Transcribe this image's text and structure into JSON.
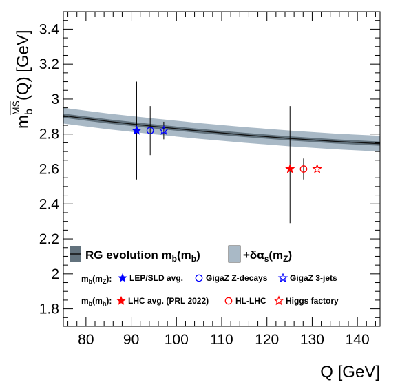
{
  "chart_data": {
    "type": "scatter",
    "xlabel": "Q [GeV]",
    "ylabel": "m_b^{MS}(Q) [GeV]",
    "xlim": [
      75,
      145
    ],
    "ylim": [
      1.7,
      3.5
    ],
    "xticks": [
      80,
      90,
      100,
      110,
      120,
      130,
      140
    ],
    "yticks": [
      1.8,
      2.0,
      2.2,
      2.4,
      2.6,
      2.8,
      3.0,
      3.2,
      3.4
    ],
    "xtick_labels": [
      "80",
      "90",
      "100",
      "110",
      "120",
      "130",
      "140"
    ],
    "ytick_labels": [
      "1.8",
      "2",
      "2.2",
      "2.4",
      "2.6",
      "2.8",
      "3",
      "3.2",
      "3.4"
    ],
    "grid": false,
    "band": {
      "x": [
        75,
        85,
        95,
        105,
        115,
        125,
        135,
        145
      ],
      "center": [
        2.905,
        2.872,
        2.844,
        2.818,
        2.795,
        2.775,
        2.758,
        2.745
      ],
      "inner_halfwidth": 0.012,
      "outer_halfwidth": 0.045
    },
    "points": [
      {
        "x": 91.2,
        "y": 2.82,
        "yerr_low": 0.28,
        "yerr_high": 0.28,
        "marker": "star-filled",
        "color": "#0000ff"
      },
      {
        "x": 94.2,
        "y": 2.82,
        "yerr_low": 0.14,
        "yerr_high": 0.14,
        "marker": "circle-open",
        "color": "#0000ff"
      },
      {
        "x": 97.2,
        "y": 2.82,
        "yerr_low": 0.05,
        "yerr_high": 0.05,
        "marker": "star-open",
        "color": "#0000ff"
      },
      {
        "x": 125.1,
        "y": 2.6,
        "yerr_low": 0.31,
        "yerr_high": 0.36,
        "marker": "star-filled",
        "color": "#ff0000"
      },
      {
        "x": 128.1,
        "y": 2.6,
        "yerr_low": 0.06,
        "yerr_high": 0.06,
        "marker": "circle-open",
        "color": "#ff0000"
      },
      {
        "x": 131.1,
        "y": 2.6,
        "yerr_low": 0,
        "yerr_high": 0,
        "marker": "star-open",
        "color": "#ff0000"
      }
    ],
    "colors": {
      "band_outer": "#a9b9c6",
      "band_inner": "#62727d",
      "central_line": "#111111",
      "blue": "#0000ff",
      "red": "#ff0000"
    }
  },
  "legend": {
    "band_label": "RG evolution m_b(m_b)",
    "band_alpha_label": "+δα_s(m_Z)",
    "row_z_prefix": "m_b(m_Z):",
    "lep_label": "LEP/SLD avg.",
    "gigaz_label": "GigaZ Z-decays",
    "gigaz3j_label": "GigaZ 3-jets",
    "row_h_prefix": "m_b(m_h):",
    "lhc_label": "LHC avg. (PRL 2022)",
    "hllhc_label": "HL-LHC",
    "higgs_label": "Higgs factory"
  }
}
